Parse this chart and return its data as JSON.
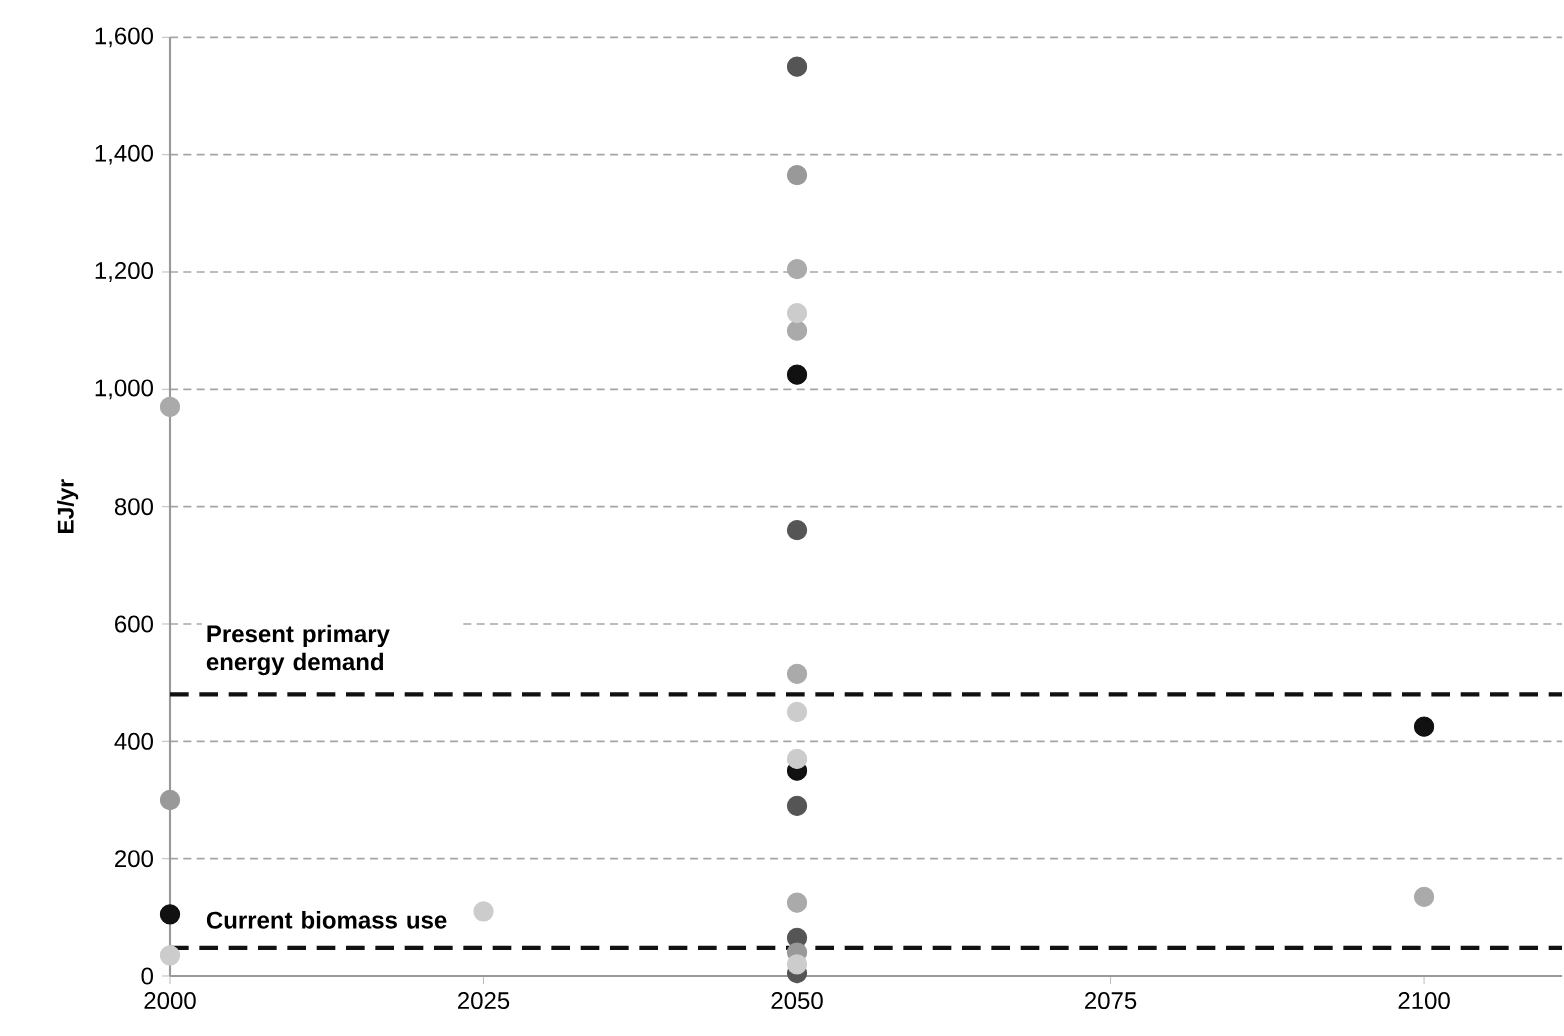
{
  "chart_data": {
    "type": "scatter",
    "ylabel": "EJ/yr",
    "xlim": [
      2000,
      2111
    ],
    "xticks": [
      {
        "value": 2000,
        "label": "2000"
      },
      {
        "value": 2025,
        "label": "2025"
      },
      {
        "value": 2050,
        "label": "2050"
      },
      {
        "value": 2075,
        "label": "2075"
      },
      {
        "value": 2100,
        "label": "2100"
      }
    ],
    "ylim": [
      0,
      1600
    ],
    "yticks": [
      {
        "value": 0,
        "label": "0"
      },
      {
        "value": 200,
        "label": "200"
      },
      {
        "value": 400,
        "label": "400"
      },
      {
        "value": 600,
        "label": "600"
      },
      {
        "value": 800,
        "label": "800"
      },
      {
        "value": 1000,
        "label": "1,000"
      },
      {
        "value": 1200,
        "label": "1,200"
      },
      {
        "value": 1400,
        "label": "1,400"
      },
      {
        "value": 1600,
        "label": "1,600"
      }
    ],
    "grid": "y",
    "marker": "circle",
    "series": [
      {
        "color": "#111111",
        "x": [
          2000,
          2050,
          2050,
          2100
        ],
        "values": [
          105,
          1025,
          350,
          425
        ]
      },
      {
        "color": "#555555",
        "x": [
          2050,
          2050,
          2050,
          2050,
          2050
        ],
        "values": [
          1550,
          760,
          290,
          65,
          5
        ]
      },
      {
        "color": "#999999",
        "x": [
          2000,
          2050,
          2050
        ],
        "values": [
          300,
          1365,
          40
        ]
      },
      {
        "color": "#aaaaaa",
        "x": [
          2000,
          2050,
          2050,
          2050,
          2050,
          2100
        ],
        "values": [
          970,
          1205,
          1100,
          515,
          125,
          135
        ]
      },
      {
        "color": "#cccccc",
        "x": [
          2000,
          2025,
          2050,
          2050,
          2050,
          2050
        ],
        "values": [
          35,
          110,
          1130,
          450,
          370,
          20
        ]
      }
    ],
    "ref_lines": [
      {
        "axis": "y",
        "value": 480,
        "label": "Present primary energy demand",
        "color": "#111111",
        "line_style": "dashed"
      },
      {
        "axis": "y",
        "value": 48,
        "label": "Current biomass use",
        "color": "#111111",
        "line_style": "dashed"
      }
    ]
  }
}
